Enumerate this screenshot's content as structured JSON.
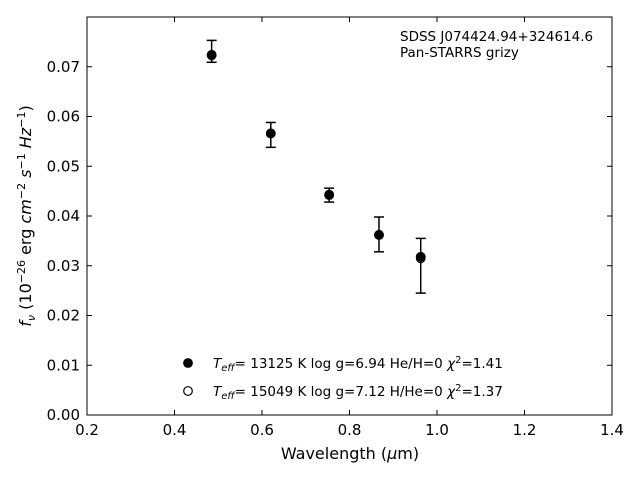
{
  "chart_data": {
    "type": "scatter",
    "title": "",
    "xlabel_parts": [
      "Wavelength (",
      "μ",
      "m)"
    ],
    "ylabel_parts": [
      "f",
      "ν",
      " (10",
      "−26",
      " erg ",
      "cm",
      "−2",
      " s",
      "−1",
      " Hz",
      "−1",
      ")"
    ],
    "annotation": [
      "SDSS J074424.94+324614.6",
      "Pan-STARRS grizy"
    ],
    "xlim": [
      0.2,
      1.4
    ],
    "ylim": [
      0.0,
      0.08
    ],
    "xticks": [
      "0.2",
      "0.4",
      "0.6",
      "0.8",
      "1.0",
      "1.2",
      "1.4"
    ],
    "yticks": [
      "0.00",
      "0.01",
      "0.02",
      "0.03",
      "0.04",
      "0.05",
      "0.06",
      "0.07"
    ],
    "observed": {
      "x": [
        0.4849,
        0.6201,
        0.7535,
        0.8674,
        0.9628
      ],
      "y": [
        0.0731,
        0.0563,
        0.0442,
        0.0363,
        0.03
      ],
      "yerr": [
        0.0022,
        0.0025,
        0.0014,
        0.0035,
        0.0055
      ]
    },
    "series": [
      {
        "name": "T_eff= 13125 K  log g=6.94  He/H=0  χ²=1.41",
        "marker": "filled",
        "x": [
          0.4849,
          0.6201,
          0.7535,
          0.8674,
          0.9628
        ],
        "y": [
          0.0723,
          0.0566,
          0.0443,
          0.0362,
          0.0318
        ]
      },
      {
        "name": "T_eff= 15049 K  log g=7.12  H/He=0  χ²=1.37",
        "marker": "open",
        "x": [
          0.4849,
          0.6201,
          0.7535,
          0.8674,
          0.9628
        ],
        "y": [
          0.0724,
          0.0566,
          0.0442,
          0.0362,
          0.0315
        ]
      }
    ],
    "legend": [
      {
        "marker": "filled",
        "teff_symbol": "T",
        "teff_sub": "eff",
        "text": "= 13125 K  log g=6.94  He/H=0  ",
        "chi": "χ",
        "chi_sup": "2",
        "chi_val": "=1.41"
      },
      {
        "marker": "open",
        "teff_symbol": "T",
        "teff_sub": "eff",
        "text": "= 15049 K  log g=7.12  H/He=0  ",
        "chi": "χ",
        "chi_sup": "2",
        "chi_val": "=1.37"
      }
    ],
    "legend_placement": "lower-center",
    "grid": false,
    "colors": {
      "marker": "#000000",
      "axes": "#000000",
      "background": "#ffffff"
    }
  }
}
